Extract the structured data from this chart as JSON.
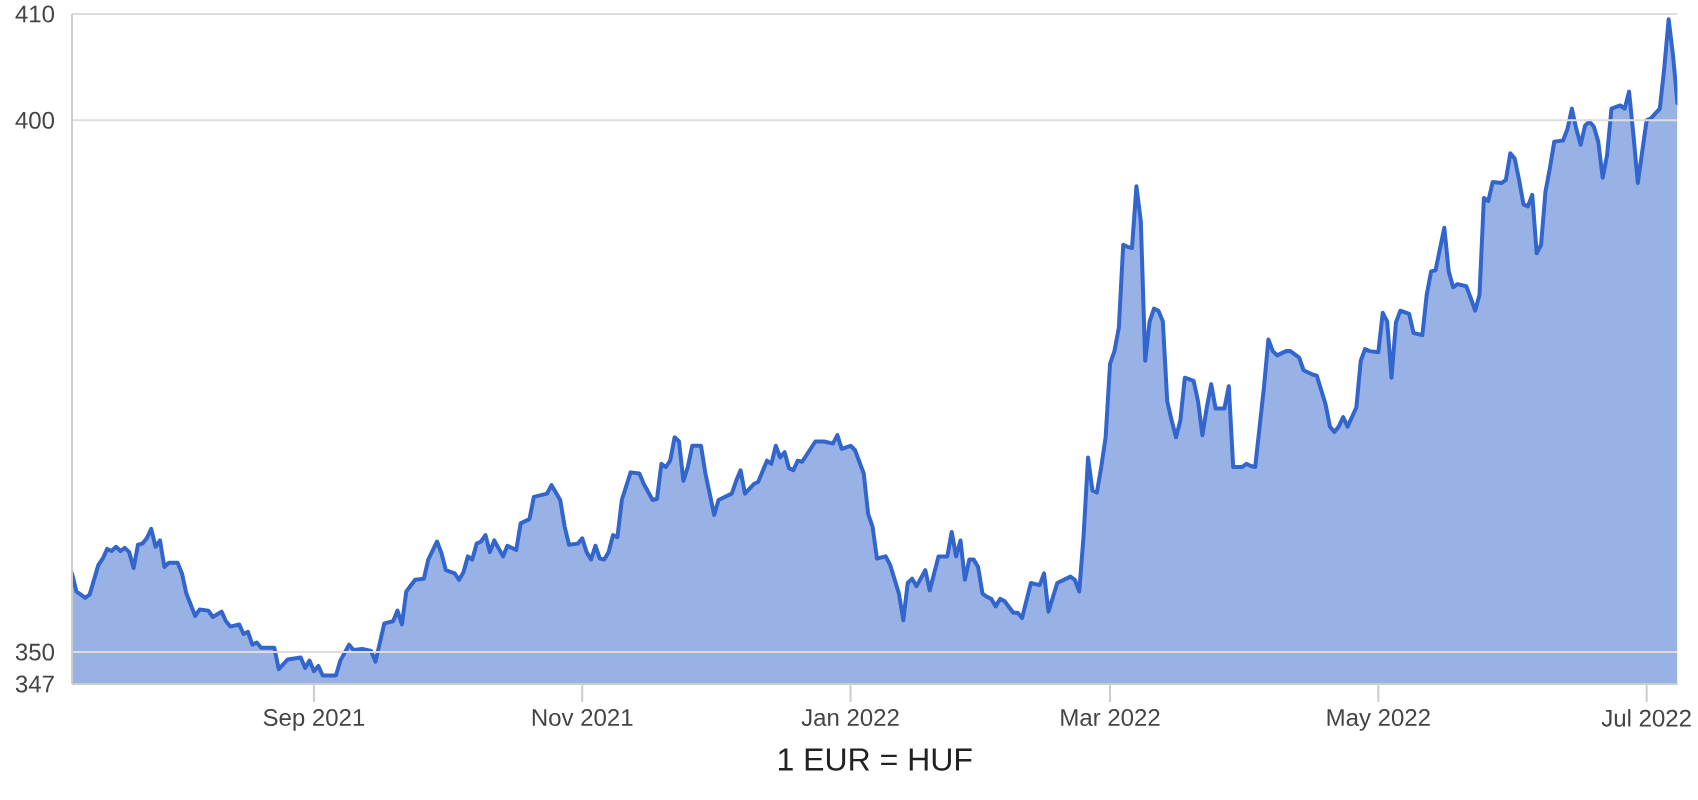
{
  "chart_data": {
    "type": "area",
    "xlabel": "1 EUR = HUF",
    "x": [
      "2021-07-08",
      "2021-07-09",
      "2021-07-10",
      "2021-07-11",
      "2021-07-12",
      "2021-07-14",
      "2021-07-15",
      "2021-07-16",
      "2021-07-17",
      "2021-07-18",
      "2021-07-19",
      "2021-07-20",
      "2021-07-21",
      "2021-07-22",
      "2021-07-23",
      "2021-07-24",
      "2021-07-25",
      "2021-07-26",
      "2021-07-27",
      "2021-07-28",
      "2021-07-29",
      "2021-07-30",
      "2021-08-01",
      "2021-08-02",
      "2021-08-03",
      "2021-08-05",
      "2021-08-06",
      "2021-08-08",
      "2021-08-09",
      "2021-08-11",
      "2021-08-12",
      "2021-08-13",
      "2021-08-15",
      "2021-08-16",
      "2021-08-17",
      "2021-08-18",
      "2021-08-19",
      "2021-08-20",
      "2021-08-23",
      "2021-08-24",
      "2021-08-26",
      "2021-08-29",
      "2021-08-30",
      "2021-08-31",
      "2021-09-01",
      "2021-09-02",
      "2021-09-03",
      "2021-09-06",
      "2021-09-07",
      "2021-09-09",
      "2021-09-10",
      "2021-09-12",
      "2021-09-14",
      "2021-09-15",
      "2021-09-17",
      "2021-09-19",
      "2021-09-20",
      "2021-09-21",
      "2021-09-22",
      "2021-09-24",
      "2021-09-26",
      "2021-09-27",
      "2021-09-29",
      "2021-09-30",
      "2021-10-01",
      "2021-10-03",
      "2021-10-04",
      "2021-10-05",
      "2021-10-06",
      "2021-10-07",
      "2021-10-08",
      "2021-10-09",
      "2021-10-10",
      "2021-10-11",
      "2021-10-12",
      "2021-10-14",
      "2021-10-15",
      "2021-10-17",
      "2021-10-18",
      "2021-10-20",
      "2021-10-21",
      "2021-10-24",
      "2021-10-25",
      "2021-10-27",
      "2021-10-28",
      "2021-10-29",
      "2021-10-31",
      "2021-11-01",
      "2021-11-02",
      "2021-11-03",
      "2021-11-04",
      "2021-11-05",
      "2021-11-06",
      "2021-11-07",
      "2021-11-08",
      "2021-11-09",
      "2021-11-10",
      "2021-11-12",
      "2021-11-14",
      "2021-11-15",
      "2021-11-17",
      "2021-11-18",
      "2021-11-19",
      "2021-11-20",
      "2021-11-21",
      "2021-11-22",
      "2021-11-23",
      "2021-11-24",
      "2021-11-25",
      "2021-11-26",
      "2021-11-28",
      "2021-11-29",
      "2021-12-01",
      "2021-12-02",
      "2021-12-05",
      "2021-12-06",
      "2021-12-07",
      "2021-12-08",
      "2021-12-10",
      "2021-12-11",
      "2021-12-13",
      "2021-12-14",
      "2021-12-15",
      "2021-12-16",
      "2021-12-17",
      "2021-12-18",
      "2021-12-19",
      "2021-12-20",
      "2021-12-21",
      "2021-12-24",
      "2021-12-26",
      "2021-12-28",
      "2021-12-29",
      "2021-12-30",
      "2022-01-01",
      "2022-01-02",
      "2022-01-04",
      "2022-01-05",
      "2022-01-06",
      "2022-01-07",
      "2022-01-09",
      "2022-01-10",
      "2022-01-12",
      "2022-01-13",
      "2022-01-14",
      "2022-01-15",
      "2022-01-16",
      "2022-01-18",
      "2022-01-19",
      "2022-01-20",
      "2022-01-21",
      "2022-01-23",
      "2022-01-24",
      "2022-01-25",
      "2022-01-26",
      "2022-01-27",
      "2022-01-28",
      "2022-01-29",
      "2022-01-30",
      "2022-01-31",
      "2022-02-01",
      "2022-02-02",
      "2022-02-03",
      "2022-02-04",
      "2022-02-05",
      "2022-02-07",
      "2022-02-08",
      "2022-02-09",
      "2022-02-11",
      "2022-02-13",
      "2022-02-14",
      "2022-02-15",
      "2022-02-17",
      "2022-02-20",
      "2022-02-21",
      "2022-02-22",
      "2022-02-23",
      "2022-02-24",
      "2022-02-25",
      "2022-02-26",
      "2022-02-27",
      "2022-02-28",
      "2022-03-01",
      "2022-03-02",
      "2022-03-03",
      "2022-03-04",
      "2022-03-05",
      "2022-03-06",
      "2022-03-07",
      "2022-03-08",
      "2022-03-09",
      "2022-03-10",
      "2022-03-11",
      "2022-03-12",
      "2022-03-13",
      "2022-03-14",
      "2022-03-15",
      "2022-03-16",
      "2022-03-17",
      "2022-03-18",
      "2022-03-20",
      "2022-03-21",
      "2022-03-22",
      "2022-03-23",
      "2022-03-24",
      "2022-03-25",
      "2022-03-27",
      "2022-03-28",
      "2022-03-29",
      "2022-03-31",
      "2022-04-01",
      "2022-04-02",
      "2022-04-03",
      "2022-04-05",
      "2022-04-06",
      "2022-04-07",
      "2022-04-08",
      "2022-04-10",
      "2022-04-11",
      "2022-04-13",
      "2022-04-14",
      "2022-04-16",
      "2022-04-17",
      "2022-04-19",
      "2022-04-20",
      "2022-04-21",
      "2022-04-22",
      "2022-04-23",
      "2022-04-24",
      "2022-04-26",
      "2022-04-27",
      "2022-04-28",
      "2022-04-29",
      "2022-05-01",
      "2022-05-02",
      "2022-05-03",
      "2022-05-04",
      "2022-05-05",
      "2022-05-06",
      "2022-05-08",
      "2022-05-09",
      "2022-05-11",
      "2022-05-12",
      "2022-05-13",
      "2022-05-14",
      "2022-05-16",
      "2022-05-17",
      "2022-05-18",
      "2022-05-19",
      "2022-05-21",
      "2022-05-22",
      "2022-05-23",
      "2022-05-24",
      "2022-05-25",
      "2022-05-26",
      "2022-05-27",
      "2022-05-29",
      "2022-05-30",
      "2022-05-31",
      "2022-06-01",
      "2022-06-02",
      "2022-06-03",
      "2022-06-04",
      "2022-06-05",
      "2022-06-06",
      "2022-06-07",
      "2022-06-08",
      "2022-06-09",
      "2022-06-10",
      "2022-06-12",
      "2022-06-13",
      "2022-06-14",
      "2022-06-15",
      "2022-06-16",
      "2022-06-17",
      "2022-06-18",
      "2022-06-19",
      "2022-06-20",
      "2022-06-21",
      "2022-06-22",
      "2022-06-23",
      "2022-06-25",
      "2022-06-26",
      "2022-06-27",
      "2022-06-28",
      "2022-06-29",
      "2022-06-30",
      "2022-07-01",
      "2022-07-02",
      "2022-07-04",
      "2022-07-05",
      "2022-07-06",
      "2022-07-07",
      "2022-07-08"
    ],
    "series": [
      {
        "color": "#3366cc",
        "values": [
          357.4,
          355.7,
          355.4,
          355.1,
          355.4,
          358.2,
          358.8,
          359.7,
          359.5,
          359.9,
          359.5,
          359.8,
          359.4,
          357.9,
          360.1,
          360.2,
          360.7,
          361.6,
          359.9,
          360.5,
          358.0,
          358.4,
          358.4,
          357.4,
          355.5,
          353.4,
          354.0,
          353.9,
          353.3,
          353.8,
          352.9,
          352.4,
          352.6,
          351.7,
          351.9,
          350.7,
          350.9,
          350.4,
          350.4,
          348.4,
          349.3,
          349.5,
          348.5,
          349.2,
          348.2,
          348.7,
          347.8,
          347.8,
          349.2,
          350.7,
          350.2,
          350.3,
          350.1,
          349.1,
          352.7,
          352.9,
          353.9,
          352.6,
          355.7,
          356.8,
          356.9,
          358.7,
          360.4,
          359.3,
          357.7,
          357.4,
          356.8,
          357.5,
          359.0,
          358.7,
          360.2,
          360.4,
          361.0,
          359.4,
          360.5,
          359.0,
          360.0,
          359.6,
          362.1,
          362.5,
          364.6,
          364.9,
          365.7,
          364.3,
          361.8,
          360.1,
          360.2,
          360.7,
          359.4,
          358.7,
          360.0,
          358.8,
          358.7,
          359.4,
          361.0,
          360.8,
          364.3,
          366.9,
          366.8,
          365.8,
          364.3,
          364.4,
          367.7,
          367.4,
          368.0,
          370.2,
          369.8,
          366.1,
          367.4,
          369.4,
          369.4,
          366.8,
          362.9,
          364.3,
          364.9,
          366.1,
          367.1,
          364.9,
          365.8,
          366.0,
          368.0,
          367.7,
          369.4,
          368.3,
          368.8,
          367.3,
          367.1,
          368.0,
          367.9,
          369.8,
          369.8,
          369.6,
          370.4,
          369.1,
          369.4,
          369.0,
          366.8,
          363.0,
          361.8,
          358.8,
          359.0,
          358.2,
          355.5,
          353.0,
          356.5,
          356.9,
          356.2,
          357.7,
          355.8,
          357.4,
          359.0,
          359.0,
          361.3,
          359.0,
          360.5,
          356.8,
          358.7,
          358.7,
          358.0,
          355.5,
          355.2,
          355.0,
          354.3,
          355.0,
          354.8,
          353.7,
          353.7,
          353.2,
          356.5,
          356.3,
          357.4,
          353.8,
          356.5,
          357.1,
          356.8,
          355.7,
          361.0,
          368.3,
          365.2,
          365.0,
          367.4,
          370.2,
          377.1,
          378.3,
          380.5,
          388.3,
          388.1,
          388.0,
          393.8,
          390.5,
          377.4,
          381.1,
          382.3,
          382.1,
          381.1,
          373.6,
          371.8,
          370.2,
          371.8,
          375.8,
          375.5,
          373.6,
          370.4,
          373.0,
          375.2,
          372.9,
          372.9,
          375.0,
          367.4,
          367.4,
          367.7,
          367.5,
          367.4,
          374.9,
          379.4,
          378.3,
          377.9,
          378.3,
          378.3,
          377.7,
          376.5,
          376.1,
          376.0,
          373.3,
          371.2,
          370.7,
          371.2,
          372.1,
          371.2,
          373.0,
          377.4,
          378.5,
          378.3,
          378.2,
          381.9,
          381.1,
          375.8,
          381.0,
          382.1,
          381.8,
          380.0,
          379.8,
          383.6,
          385.8,
          385.9,
          389.9,
          385.8,
          384.3,
          384.6,
          384.4,
          383.3,
          382.1,
          383.6,
          392.7,
          392.4,
          394.2,
          394.1,
          394.4,
          396.9,
          396.4,
          394.4,
          392.1,
          391.9,
          393.0,
          387.5,
          388.3,
          393.3,
          395.5,
          398.0,
          398.1,
          399.2,
          401.1,
          399.2,
          397.7,
          399.5,
          399.9,
          399.4,
          398.0,
          394.6,
          396.7,
          401.1,
          401.4,
          401.1,
          402.7,
          398.6,
          394.1,
          397.1,
          400.0,
          400.2,
          401.1,
          404.9,
          409.5,
          406.1,
          401.6
        ]
      }
    ],
    "xlim": [
      "2021-07-08",
      "2022-07-08"
    ],
    "xticks": [
      {
        "value": "2021-09-01",
        "label": "Sep 2021"
      },
      {
        "value": "2021-11-01",
        "label": "Nov 2021"
      },
      {
        "value": "2022-01-01",
        "label": "Jan 2022"
      },
      {
        "value": "2022-03-01",
        "label": "Mar 2022"
      },
      {
        "value": "2022-05-01",
        "label": "May 2022"
      },
      {
        "value": "2022-07-01",
        "label": "Jul 2022"
      }
    ],
    "ylim": [
      347,
      410
    ],
    "yticks": [
      347,
      350,
      400,
      410
    ],
    "grid": "y"
  }
}
